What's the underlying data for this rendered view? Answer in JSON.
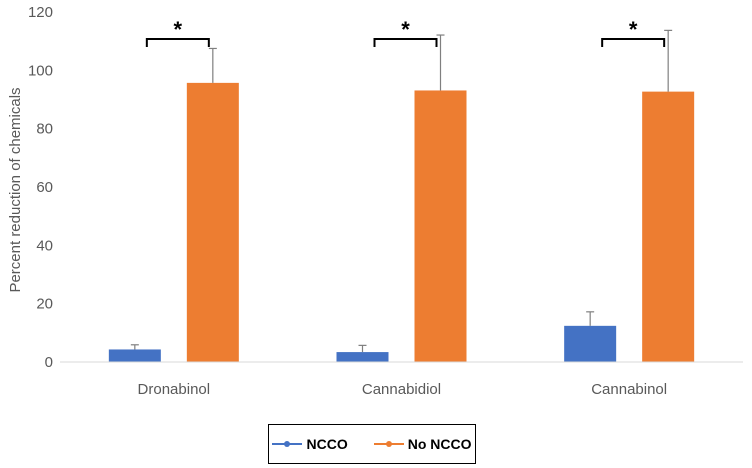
{
  "chart_data": {
    "type": "bar",
    "title": "",
    "xlabel": "",
    "ylabel": "Percent reduction of chemicals",
    "ylim": [
      0,
      120
    ],
    "yticks": [
      0,
      20,
      40,
      60,
      80,
      100,
      120
    ],
    "grid": false,
    "categories": [
      "Dronabinol",
      "Cannabidiol",
      "Cannabinol"
    ],
    "series": [
      {
        "name": "NCCO",
        "color": "#4472C4",
        "values": [
          4.3,
          3.4,
          12.4
        ],
        "errors": [
          1.6,
          2.3,
          4.8
        ]
      },
      {
        "name": "No NCCO",
        "color": "#ED7D31",
        "values": [
          95.7,
          93.1,
          92.7
        ],
        "errors": [
          11.8,
          19.0,
          21.0
        ]
      }
    ],
    "significance_marker": "*",
    "legend_position": "bottom"
  }
}
